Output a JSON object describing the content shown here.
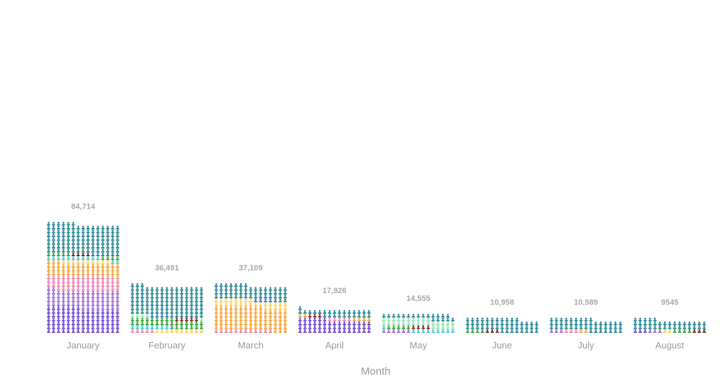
{
  "chart_data": {
    "type": "bar",
    "subtype": "stacked-pictogram",
    "xlabel": "Month",
    "ylabel": "",
    "categories": [
      "January",
      "February",
      "March",
      "April",
      "May",
      "June",
      "July",
      "August"
    ],
    "totals": [
      84714,
      36491,
      37109,
      17926,
      14555,
      10958,
      10589,
      9545
    ],
    "total_labels": [
      "84,714",
      "36,491",
      "37,109",
      "17,926",
      "14,555",
      "10,958",
      "10,589",
      "9545"
    ],
    "icon": "person-icon",
    "grid": false,
    "legend": "none",
    "series": [
      {
        "color": "#6a3fd4",
        "values": [
          19400,
          0,
          0,
          10100,
          0,
          0,
          0,
          500
        ]
      },
      {
        "color": "#9b62d6",
        "values": [
          14000,
          0,
          0,
          0,
          1200,
          0,
          600,
          500
        ]
      },
      {
        "color": "#f07aa6",
        "values": [
          11300,
          1000,
          2400,
          1000,
          0,
          0,
          500,
          0
        ]
      },
      {
        "color": "#f5a032",
        "values": [
          9700,
          0,
          17500,
          1100,
          0,
          0,
          300,
          0
        ]
      },
      {
        "color": "#fbd24e",
        "values": [
          1900,
          2000,
          5500,
          0,
          0,
          0,
          0,
          300
        ]
      },
      {
        "color": "#37c9d8",
        "values": [
          2600,
          1600,
          0,
          0,
          2000,
          0,
          0,
          0
        ]
      },
      {
        "color": "#2ca02c",
        "values": [
          1700,
          6100,
          0,
          0,
          900,
          700,
          0,
          700
        ]
      },
      {
        "color": "#7a1a1a",
        "values": [
          800,
          1000,
          0,
          600,
          700,
          500,
          0,
          500
        ]
      },
      {
        "color": "#98e2b4",
        "values": [
          0,
          1000,
          0,
          0,
          5900,
          0,
          0,
          0
        ]
      },
      {
        "color": "#2b6fd0",
        "values": [
          500,
          1000,
          1000,
          0,
          0,
          0,
          0,
          0
        ]
      },
      {
        "color": "#1e8390",
        "values": [
          22814,
          22791,
          10709,
          5126,
          3855,
          9758,
          9189,
          7045
        ]
      }
    ]
  }
}
